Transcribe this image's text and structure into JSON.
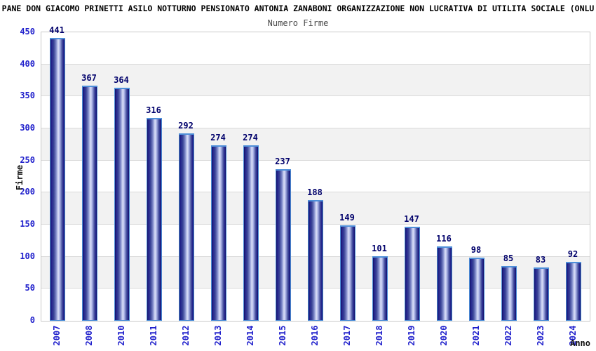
{
  "header": {
    "title": "PANE DON GIACOMO PRINETTI ASILO NOTTURNO PENSIONATO ANTONIA ZANABONI ORGANIZZAZIONE NON LUCRATIVA DI UTILITA SOCIALE (ONLU",
    "subtitle": "Numero Firme"
  },
  "chart_data": {
    "type": "bar",
    "title": "PANE DON GIACOMO PRINETTI ASILO NOTTURNO PENSIONATO ANTONIA ZANABONI ORGANIZZAZIONE NON LUCRATIVA DI UTILITA SOCIALE (ONLU",
    "subtitle": "Numero Firme",
    "xlabel": "Anno",
    "ylabel": "Firme",
    "categories": [
      "2007",
      "2008",
      "2010",
      "2011",
      "2012",
      "2013",
      "2014",
      "2015",
      "2016",
      "2017",
      "2018",
      "2019",
      "2020",
      "2021",
      "2022",
      "2023",
      "2024"
    ],
    "values": [
      441,
      367,
      364,
      316,
      292,
      274,
      274,
      237,
      188,
      149,
      101,
      147,
      116,
      98,
      85,
      83,
      92
    ],
    "ylim": [
      0,
      450
    ],
    "ytick_step": 50,
    "grid": true,
    "legend_position": "none",
    "band_pattern": "alternating light-gray horizontal bands of 50 units starting at y=50",
    "colors": {
      "tick_label": "#2121cc",
      "value_label": "#00006b",
      "bar_dark": "#101060",
      "bar_mid": "#23238e",
      "bar_highlight": "#d9def7",
      "bar_border": "#4e8fd9",
      "band_fill": "#f2f2f2",
      "gridline": "#dadada",
      "plot_border": "#c9c9c9",
      "axis_title": "#111111",
      "title_color": "#000000",
      "subtitle_color": "#4a4a4a"
    }
  }
}
